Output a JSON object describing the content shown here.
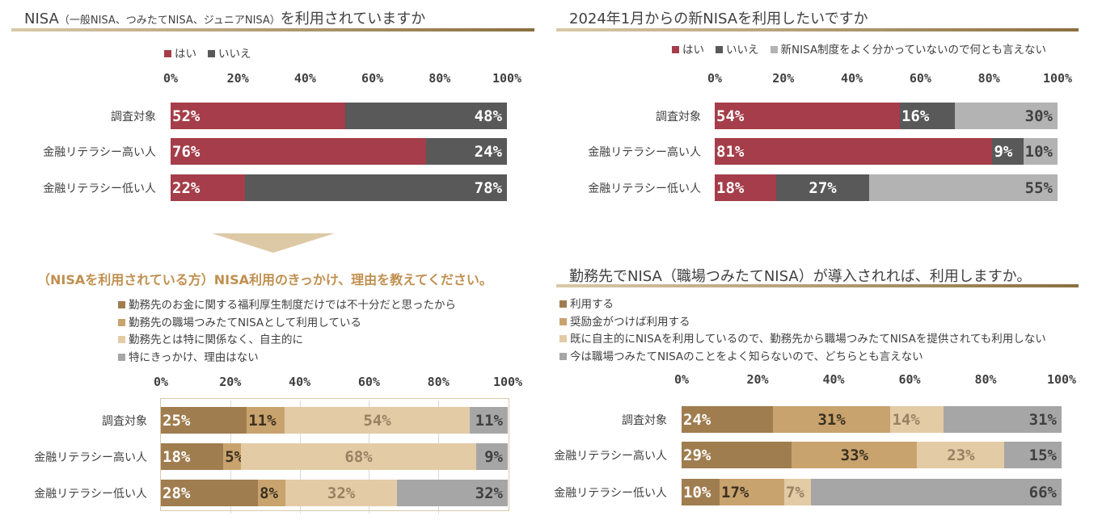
{
  "panels": [
    {
      "id": "p1",
      "title_main": "NISA",
      "title_sub": "（一般NISA、つみたてNISA、ジュニアNISA）",
      "title_end": "を利用されていますか",
      "legend": [
        {
          "label": "はい",
          "color": "#a53e4a"
        },
        {
          "label": "いいえ",
          "color": "#595959"
        }
      ]
    },
    {
      "id": "p2",
      "title": "2024年1月からの新NISAを利用したいですか",
      "legend": [
        {
          "label": "はい",
          "color": "#a53e4a"
        },
        {
          "label": "いいえ",
          "color": "#595959"
        },
        {
          "label": "新NISA制度をよく分かっていないので何とも言えない",
          "color": "#b3b3b3"
        }
      ]
    },
    {
      "id": "p3",
      "title": "（NISAを利用されている方）NISA利用のきっかけ、理由を教えてください。",
      "legend": [
        {
          "label": "勤務先のお金に関する福利厚生制度だけでは不十分だと思ったから",
          "color": "#a07d4f"
        },
        {
          "label": "勤務先の職場つみたてNISAとして利用している",
          "color": "#c9a36e"
        },
        {
          "label": "勤務先とは特に関係なく、自主的に",
          "color": "#e3cba6"
        },
        {
          "label": "特にきっかけ、理由はない",
          "color": "#a6a6a6"
        }
      ]
    },
    {
      "id": "p4",
      "title": "勤務先でNISA（職場つみたてNISA）が導入されれば、利用しますか。",
      "legend": [
        {
          "label": "利用する",
          "color": "#a07d4f"
        },
        {
          "label": "奨励金がつけば利用する",
          "color": "#c9a36e"
        },
        {
          "label": "既に自主的にNISAを利用しているので、勤務先から職場つみたてNISAを提供されても利用しない",
          "color": "#e3cba6"
        },
        {
          "label": "今は職場つみたてNISAのことをよく知らないので、どちらとも言えない",
          "color": "#a6a6a6"
        }
      ]
    }
  ],
  "chart_data": [
    {
      "type": "bar",
      "orientation": "horizontal-stacked-100",
      "title": "NISA（一般NISA、つみたてNISA、ジュニアNISA）を利用されていますか",
      "categories": [
        "調査対象",
        "金融リテラシー高い人",
        "金融リテラシー低い人"
      ],
      "x_ticks": [
        "0%",
        "20%",
        "40%",
        "60%",
        "80%",
        "100%"
      ],
      "xlim": [
        0,
        100
      ],
      "legend_position": "top-left",
      "series": [
        {
          "name": "はい",
          "values": [
            52,
            76,
            22
          ],
          "labels": [
            "52%",
            "76%",
            "22%"
          ],
          "color": "#a53e4a"
        },
        {
          "name": "いいえ",
          "values": [
            48,
            24,
            78
          ],
          "labels": [
            "48%",
            "24%",
            "78%"
          ],
          "color": "#595959"
        }
      ]
    },
    {
      "type": "bar",
      "orientation": "horizontal-stacked-100",
      "title": "2024年1月からの新NISAを利用したいですか",
      "categories": [
        "調査対象",
        "金融リテラシー高い人",
        "金融リテラシー低い人"
      ],
      "x_ticks": [
        "0%",
        "20%",
        "40%",
        "60%",
        "80%",
        "100%"
      ],
      "xlim": [
        0,
        100
      ],
      "legend_position": "top-right",
      "series": [
        {
          "name": "はい",
          "values": [
            54,
            81,
            18
          ],
          "labels": [
            "54%",
            "81%",
            "18%"
          ],
          "color": "#a53e4a"
        },
        {
          "name": "いいえ",
          "values": [
            16,
            9,
            27
          ],
          "labels": [
            "16%",
            "9%",
            "27%"
          ],
          "color": "#595959"
        },
        {
          "name": "新NISA制度をよく分かっていないので何とも言えない",
          "values": [
            30,
            10,
            55
          ],
          "labels": [
            "30%",
            "10%",
            "55%"
          ],
          "color": "#b3b3b3"
        }
      ]
    },
    {
      "type": "bar",
      "orientation": "horizontal-stacked-100",
      "title": "（NISAを利用されている方）NISA利用のきっかけ、理由を教えてください。",
      "categories": [
        "調査対象",
        "金融リテラシー高い人",
        "金融リテラシー低い人"
      ],
      "x_ticks": [
        "0%",
        "20%",
        "40%",
        "60%",
        "80%",
        "100%"
      ],
      "xlim": [
        0,
        100
      ],
      "legend_position": "top-left",
      "series": [
        {
          "name": "勤務先のお金に関する福利厚生制度だけでは不十分だと思ったから",
          "values": [
            25,
            18,
            28
          ],
          "labels": [
            "25%",
            "18%",
            "28%"
          ],
          "color": "#a07d4f"
        },
        {
          "name": "勤務先の職場つみたてNISAとして利用している",
          "values": [
            11,
            5,
            8
          ],
          "labels": [
            "11%",
            "5%",
            "8%"
          ],
          "color": "#c9a36e"
        },
        {
          "name": "勤務先とは特に関係なく、自主的に",
          "values": [
            54,
            68,
            32
          ],
          "labels": [
            "54%",
            "68%",
            "32%"
          ],
          "color": "#e3cba6"
        },
        {
          "name": "特にきっかけ、理由はない",
          "values": [
            11,
            9,
            32
          ],
          "labels": [
            "11%",
            "9%",
            "32%"
          ],
          "color": "#a6a6a6"
        }
      ]
    },
    {
      "type": "bar",
      "orientation": "horizontal-stacked-100",
      "title": "勤務先でNISA（職場つみたてNISA）が導入されれば、利用しますか。",
      "categories": [
        "調査対象",
        "金融リテラシー高い人",
        "金融リテラシー低い人"
      ],
      "x_ticks": [
        "0%",
        "20%",
        "40%",
        "60%",
        "80%",
        "100%"
      ],
      "xlim": [
        0,
        100
      ],
      "legend_position": "top-left",
      "series": [
        {
          "name": "利用する",
          "values": [
            24,
            29,
            10
          ],
          "labels": [
            "24%",
            "29%",
            "10%"
          ],
          "color": "#a07d4f"
        },
        {
          "name": "奨励金がつけば利用する",
          "values": [
            31,
            33,
            17
          ],
          "labels": [
            "31%",
            "33%",
            "17%"
          ],
          "color": "#c9a36e"
        },
        {
          "name": "既に自主的にNISAを利用しているので、勤務先から職場つみたてNISAを提供されても利用しない",
          "values": [
            14,
            23,
            7
          ],
          "labels": [
            "14%",
            "23%",
            "7%"
          ],
          "color": "#e3cba6"
        },
        {
          "name": "今は職場つみたてNISAのことをよく知らないので、どちらとも言えない",
          "values": [
            31,
            15,
            66
          ],
          "labels": [
            "31%",
            "15%",
            "66%"
          ],
          "color": "#a6a6a6"
        }
      ]
    }
  ]
}
